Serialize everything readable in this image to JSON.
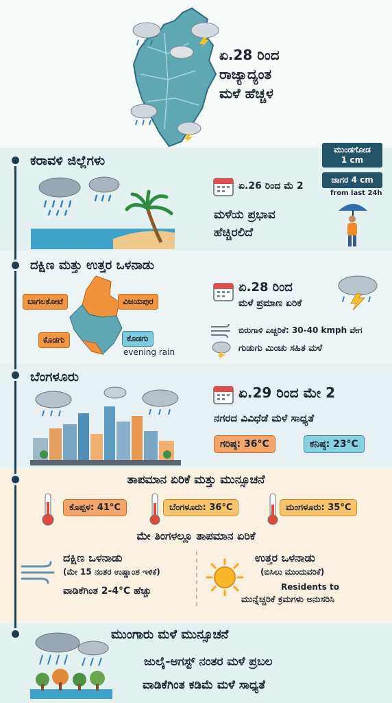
{
  "header": {
    "title_line1": "ಏ.28 ರಿಂದ",
    "title_line2": "ರಾಜ್ಯಾದ್ಯಂತ",
    "title_line3": "ಮಳೆ ಹೆಚ್ಚಳ"
  },
  "coastal": {
    "title": "ಕರಾವಳಿ ಜಿಲ್ಲೆಗಳು",
    "date": "ಏ.26 ರಿಂದ ಮೆ 2",
    "impact_line1": "ಮಳೆಯ ಪ್ರಭಾವ",
    "impact_line2": "ಹೆಚ್ಚಿರಲಿದೆ",
    "rain1_line1": "ಮುಂಡಗೋಡ",
    "rain1_line2": "1 cm",
    "rain2": "ಜಾಗರ 4 cm",
    "rain_note": "from last 24h"
  },
  "interior": {
    "title": "ದಕ್ಷಿಣ ಮತ್ತು ಉತ್ತರ ಒಳನಾಡು",
    "labels": [
      "ಬಾಗಲಕೋಟೆ",
      "ವಿಜಯಪುರ",
      "ಕೊಡಗು",
      "ಕೊಡಗು"
    ],
    "evening": "evening rain",
    "date": "ಏ.28 ರಿಂದ",
    "increase": "ಮಳೆ ಪ್ರಮಾಣ ಏರಿಕೆ",
    "wind": "ಬಿರುಗಾಳಿ ಎಚ್ಚರಿಕೆ: 30-40 kmph ವೇಗ",
    "thunder": "ಗುಡುಗು ಮಿಂಚು ಸಹಿತ ಮಳೆ"
  },
  "bengaluru": {
    "title": "ಬೆಂಗಳೂರು",
    "date": "ಏ.29 ರಿಂದ ಮೇ 2",
    "forecast": "ನಗರದ ವಿವಿಧೆಡೆ ಮಳೆ ಸಾಧ್ಯತೆ",
    "max": "ಗರಿಷ್ಠ: 36°C",
    "min": "ಕನಿಷ್ಠ: 23°C"
  },
  "temperature": {
    "title": "ತಾಪಮಾನ ಏರಿಕೆ ಮತ್ತು ಮುನ್ಸೂಚನೆ",
    "koppal": "ಕೊಪ್ಪಳ: 41°C",
    "bengaluru": "ಬೆಂಗಳೂರು: 36°C",
    "mangaluru": "ಮಂಗಳೂರು: 35°C",
    "may": "ಮೇ ತಿಂಗಳಲ್ಲೂ ತಾಪಮಾನ ಏರಿಕೆ",
    "south_title": "ದಕ್ಷಿಣ ಒಳನಾಡು",
    "south_note": "(ಮೇ 15 ನಂತರ ಉಷ್ಣಾಂಶ ಇಳಿಕೆ)",
    "south_rise": "ವಾಡಿಕೆಗಿಂತ 2-4°C ಹೆಚ್ಚು",
    "north_title": "ಉತ್ತರ ಒಳನಾಡು",
    "north_note": "(ಬಿಸಿಲು ಮುಂದುವರಿಕೆ)",
    "residents": "Residents to",
    "precaution": "ಮುನ್ನೆಚ್ಚರಿಕೆ ಕ್ರಮಗಳು ಅನುಸರಿಸಿ"
  },
  "monsoon": {
    "title": "ಮುಂಗಾರು ಮಳೆ ಮುನ್ಸೂಚನೆ",
    "line1": "ಜುಲೈ-ಆಗಸ್ಟ್ ನಂತರ ಮಳೆ ಪ್ರಬಲ",
    "line2": "ವಾಡಿಕೆಗಿಂತ ಕಡಿಮೆ ಮಳೆ ಸಾಧ್ಯತೆ"
  },
  "colors": {
    "accent_dark": "#1f3d4f",
    "orange": "#f3963f",
    "blue": "#7dcbdc"
  }
}
